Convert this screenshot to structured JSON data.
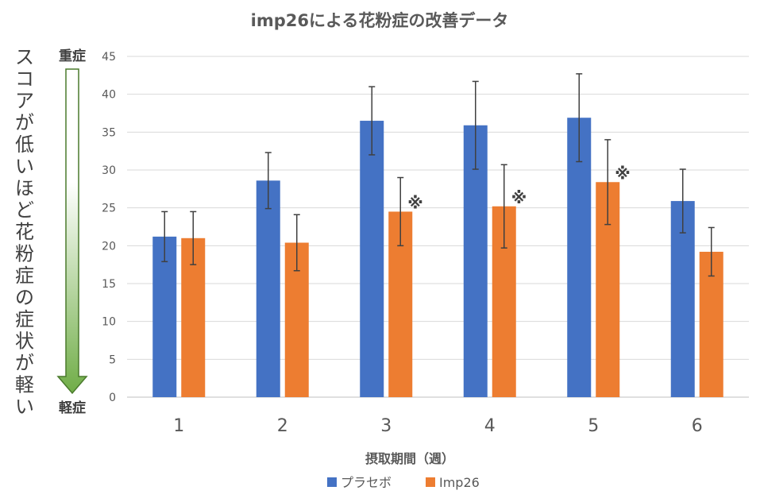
{
  "chart_data": {
    "type": "bar",
    "title": "imp26による花粉症の改善データ",
    "xlabel": "摂取期間（週）",
    "ylabel": "スコアが低いほど花粉症の症状が軽い",
    "ylim": [
      0,
      45
    ],
    "yticks": [
      "0",
      "5",
      "10",
      "15",
      "20",
      "25",
      "30",
      "35",
      "40",
      "45"
    ],
    "categories": [
      "1",
      "2",
      "3",
      "4",
      "5",
      "6"
    ],
    "series": [
      {
        "name": "プラセボ",
        "color": "#4472C4",
        "values": [
          21.2,
          28.6,
          36.5,
          35.9,
          36.9,
          25.9
        ],
        "error": [
          3.3,
          3.7,
          4.5,
          5.8,
          5.8,
          4.2
        ]
      },
      {
        "name": "Imp26",
        "color": "#ED7D31",
        "values": [
          21.0,
          20.4,
          24.5,
          25.2,
          28.4,
          19.2
        ],
        "error": [
          3.5,
          3.7,
          4.5,
          5.5,
          5.6,
          3.2
        ]
      }
    ],
    "significance_marks": [
      "",
      "",
      "※",
      "※",
      "※",
      ""
    ],
    "severity_scale": {
      "top": "重症",
      "bottom": "軽症"
    },
    "grid": true,
    "legend_position": "bottom"
  }
}
